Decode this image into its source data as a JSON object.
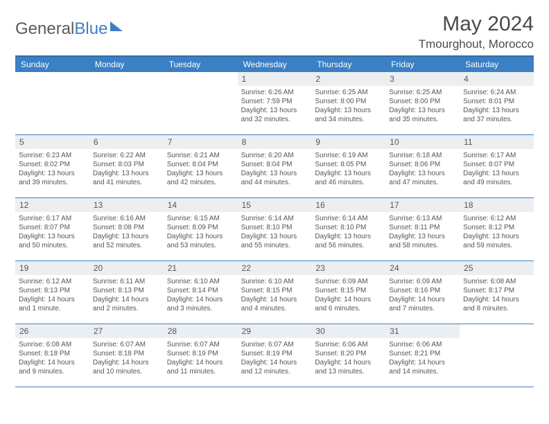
{
  "logo": {
    "part1": "General",
    "part2": "Blue"
  },
  "title": "May 2024",
  "location": "Tmourghout, Morocco",
  "colors": {
    "header_bg": "#3b7fc4",
    "border": "#2e6fa8",
    "daynum_bg": "#eceff2",
    "text": "#555555"
  },
  "days_of_week": [
    "Sunday",
    "Monday",
    "Tuesday",
    "Wednesday",
    "Thursday",
    "Friday",
    "Saturday"
  ],
  "weeks": [
    [
      {
        "day": "",
        "lines": []
      },
      {
        "day": "",
        "lines": []
      },
      {
        "day": "",
        "lines": []
      },
      {
        "day": "1",
        "lines": [
          "Sunrise: 6:26 AM",
          "Sunset: 7:59 PM",
          "Daylight: 13 hours",
          "and 32 minutes."
        ]
      },
      {
        "day": "2",
        "lines": [
          "Sunrise: 6:25 AM",
          "Sunset: 8:00 PM",
          "Daylight: 13 hours",
          "and 34 minutes."
        ]
      },
      {
        "day": "3",
        "lines": [
          "Sunrise: 6:25 AM",
          "Sunset: 8:00 PM",
          "Daylight: 13 hours",
          "and 35 minutes."
        ]
      },
      {
        "day": "4",
        "lines": [
          "Sunrise: 6:24 AM",
          "Sunset: 8:01 PM",
          "Daylight: 13 hours",
          "and 37 minutes."
        ]
      }
    ],
    [
      {
        "day": "5",
        "lines": [
          "Sunrise: 6:23 AM",
          "Sunset: 8:02 PM",
          "Daylight: 13 hours",
          "and 39 minutes."
        ]
      },
      {
        "day": "6",
        "lines": [
          "Sunrise: 6:22 AM",
          "Sunset: 8:03 PM",
          "Daylight: 13 hours",
          "and 41 minutes."
        ]
      },
      {
        "day": "7",
        "lines": [
          "Sunrise: 6:21 AM",
          "Sunset: 8:04 PM",
          "Daylight: 13 hours",
          "and 42 minutes."
        ]
      },
      {
        "day": "8",
        "lines": [
          "Sunrise: 6:20 AM",
          "Sunset: 8:04 PM",
          "Daylight: 13 hours",
          "and 44 minutes."
        ]
      },
      {
        "day": "9",
        "lines": [
          "Sunrise: 6:19 AM",
          "Sunset: 8:05 PM",
          "Daylight: 13 hours",
          "and 46 minutes."
        ]
      },
      {
        "day": "10",
        "lines": [
          "Sunrise: 6:18 AM",
          "Sunset: 8:06 PM",
          "Daylight: 13 hours",
          "and 47 minutes."
        ]
      },
      {
        "day": "11",
        "lines": [
          "Sunrise: 6:17 AM",
          "Sunset: 8:07 PM",
          "Daylight: 13 hours",
          "and 49 minutes."
        ]
      }
    ],
    [
      {
        "day": "12",
        "lines": [
          "Sunrise: 6:17 AM",
          "Sunset: 8:07 PM",
          "Daylight: 13 hours",
          "and 50 minutes."
        ]
      },
      {
        "day": "13",
        "lines": [
          "Sunrise: 6:16 AM",
          "Sunset: 8:08 PM",
          "Daylight: 13 hours",
          "and 52 minutes."
        ]
      },
      {
        "day": "14",
        "lines": [
          "Sunrise: 6:15 AM",
          "Sunset: 8:09 PM",
          "Daylight: 13 hours",
          "and 53 minutes."
        ]
      },
      {
        "day": "15",
        "lines": [
          "Sunrise: 6:14 AM",
          "Sunset: 8:10 PM",
          "Daylight: 13 hours",
          "and 55 minutes."
        ]
      },
      {
        "day": "16",
        "lines": [
          "Sunrise: 6:14 AM",
          "Sunset: 8:10 PM",
          "Daylight: 13 hours",
          "and 56 minutes."
        ]
      },
      {
        "day": "17",
        "lines": [
          "Sunrise: 6:13 AM",
          "Sunset: 8:11 PM",
          "Daylight: 13 hours",
          "and 58 minutes."
        ]
      },
      {
        "day": "18",
        "lines": [
          "Sunrise: 6:12 AM",
          "Sunset: 8:12 PM",
          "Daylight: 13 hours",
          "and 59 minutes."
        ]
      }
    ],
    [
      {
        "day": "19",
        "lines": [
          "Sunrise: 6:12 AM",
          "Sunset: 8:13 PM",
          "Daylight: 14 hours",
          "and 1 minute."
        ]
      },
      {
        "day": "20",
        "lines": [
          "Sunrise: 6:11 AM",
          "Sunset: 8:13 PM",
          "Daylight: 14 hours",
          "and 2 minutes."
        ]
      },
      {
        "day": "21",
        "lines": [
          "Sunrise: 6:10 AM",
          "Sunset: 8:14 PM",
          "Daylight: 14 hours",
          "and 3 minutes."
        ]
      },
      {
        "day": "22",
        "lines": [
          "Sunrise: 6:10 AM",
          "Sunset: 8:15 PM",
          "Daylight: 14 hours",
          "and 4 minutes."
        ]
      },
      {
        "day": "23",
        "lines": [
          "Sunrise: 6:09 AM",
          "Sunset: 8:15 PM",
          "Daylight: 14 hours",
          "and 6 minutes."
        ]
      },
      {
        "day": "24",
        "lines": [
          "Sunrise: 6:09 AM",
          "Sunset: 8:16 PM",
          "Daylight: 14 hours",
          "and 7 minutes."
        ]
      },
      {
        "day": "25",
        "lines": [
          "Sunrise: 6:08 AM",
          "Sunset: 8:17 PM",
          "Daylight: 14 hours",
          "and 8 minutes."
        ]
      }
    ],
    [
      {
        "day": "26",
        "lines": [
          "Sunrise: 6:08 AM",
          "Sunset: 8:18 PM",
          "Daylight: 14 hours",
          "and 9 minutes."
        ]
      },
      {
        "day": "27",
        "lines": [
          "Sunrise: 6:07 AM",
          "Sunset: 8:18 PM",
          "Daylight: 14 hours",
          "and 10 minutes."
        ]
      },
      {
        "day": "28",
        "lines": [
          "Sunrise: 6:07 AM",
          "Sunset: 8:19 PM",
          "Daylight: 14 hours",
          "and 11 minutes."
        ]
      },
      {
        "day": "29",
        "lines": [
          "Sunrise: 6:07 AM",
          "Sunset: 8:19 PM",
          "Daylight: 14 hours",
          "and 12 minutes."
        ]
      },
      {
        "day": "30",
        "lines": [
          "Sunrise: 6:06 AM",
          "Sunset: 8:20 PM",
          "Daylight: 14 hours",
          "and 13 minutes."
        ]
      },
      {
        "day": "31",
        "lines": [
          "Sunrise: 6:06 AM",
          "Sunset: 8:21 PM",
          "Daylight: 14 hours",
          "and 14 minutes."
        ]
      },
      {
        "day": "",
        "lines": []
      }
    ]
  ]
}
